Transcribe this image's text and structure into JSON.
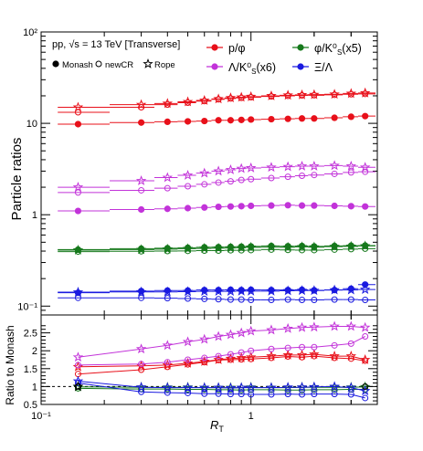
{
  "chart_data": {
    "type": "scatter",
    "annotation": "pp, √s = 13 TeV [Transverse]",
    "xlabel": "R_T",
    "xscale": "log",
    "xlim": [
      0.1,
      4.0
    ],
    "x_tick_labels": [
      "10⁻¹",
      "1"
    ],
    "x": [
      0.15,
      0.3,
      0.4,
      0.5,
      0.6,
      0.7,
      0.8,
      0.9,
      1.0,
      1.25,
      1.5,
      1.75,
      2.0,
      2.5,
      3.0,
      3.5
    ],
    "markers_legend": [
      {
        "label": "Monash",
        "marker": "circle-filled"
      },
      {
        "label": "newCR",
        "marker": "circle-open"
      },
      {
        "label": "Rope",
        "marker": "star-open"
      }
    ],
    "species_legend": [
      {
        "label": "p/φ",
        "color": "#e8101a"
      },
      {
        "label": "φ/K⁰_S(x5)",
        "color": "#16791c"
      },
      {
        "label": "Λ/K⁰_S(x6)",
        "color": "#c233d9"
      },
      {
        "label": "Ξ/Λ",
        "color": "#1a1ae0"
      }
    ],
    "top_panel": {
      "ylabel": "Particle  ratios",
      "yscale": "log",
      "ylim": [
        0.08,
        100
      ],
      "y_tick_labels": [
        "10⁻¹",
        "1",
        "10",
        "10²"
      ],
      "series": [
        {
          "species": "p/φ",
          "model": "Monash",
          "color": "#e8101a",
          "marker": "circle-filled",
          "values": [
            9.8,
            10.2,
            10.4,
            10.5,
            10.6,
            10.8,
            10.8,
            10.9,
            11.0,
            11.1,
            11.2,
            11.3,
            11.3,
            11.5,
            11.8,
            12.0
          ]
        },
        {
          "species": "p/φ",
          "model": "newCR",
          "color": "#e8101a",
          "marker": "circle-open",
          "values": [
            13.2,
            15.0,
            16.0,
            16.8,
            17.5,
            18.3,
            18.7,
            19.0,
            19.3,
            19.7,
            20.0,
            20.2,
            20.3,
            20.5,
            20.8,
            21.0
          ]
        },
        {
          "species": "p/φ",
          "model": "Rope",
          "color": "#e8101a",
          "marker": "star-open",
          "values": [
            15.0,
            16.0,
            16.5,
            17.2,
            17.8,
            18.5,
            19.0,
            19.3,
            19.6,
            20.0,
            20.3,
            20.5,
            20.6,
            20.8,
            21.2,
            21.5
          ]
        },
        {
          "species": "Λ/K⁰_S(x6)",
          "model": "Monash",
          "color": "#c233d9",
          "marker": "circle-filled",
          "values": [
            1.1,
            1.14,
            1.16,
            1.18,
            1.2,
            1.22,
            1.23,
            1.24,
            1.25,
            1.26,
            1.27,
            1.26,
            1.26,
            1.25,
            1.24,
            1.23
          ]
        },
        {
          "species": "Λ/K⁰_S(x6)",
          "model": "newCR",
          "color": "#c233d9",
          "marker": "circle-open",
          "values": [
            1.75,
            1.85,
            1.95,
            2.05,
            2.15,
            2.25,
            2.32,
            2.4,
            2.45,
            2.52,
            2.6,
            2.67,
            2.72,
            2.8,
            2.9,
            2.95
          ]
        },
        {
          "species": "Λ/K⁰_S(x6)",
          "model": "Rope",
          "color": "#c233d9",
          "marker": "star-open",
          "values": [
            2.0,
            2.35,
            2.55,
            2.7,
            2.85,
            3.0,
            3.1,
            3.2,
            3.25,
            3.3,
            3.35,
            3.4,
            3.4,
            3.45,
            3.4,
            3.3
          ]
        },
        {
          "species": "φ/K⁰_S(x5)",
          "model": "Monash",
          "color": "#16791c",
          "marker": "circle-filled",
          "values": [
            0.415,
            0.425,
            0.43,
            0.435,
            0.44,
            0.442,
            0.445,
            0.447,
            0.45,
            0.455,
            0.452,
            0.455,
            0.45,
            0.455,
            0.458,
            0.46
          ]
        },
        {
          "species": "φ/K⁰_S(x5)",
          "model": "newCR",
          "color": "#16791c",
          "marker": "circle-open",
          "values": [
            0.395,
            0.398,
            0.4,
            0.402,
            0.405,
            0.405,
            0.408,
            0.408,
            0.41,
            0.415,
            0.412,
            0.41,
            0.41,
            0.415,
            0.42,
            0.425
          ]
        },
        {
          "species": "φ/K⁰_S(x5)",
          "model": "Rope",
          "color": "#16791c",
          "marker": "star-open",
          "values": [
            0.41,
            0.415,
            0.42,
            0.425,
            0.428,
            0.43,
            0.432,
            0.435,
            0.44,
            0.442,
            0.44,
            0.445,
            0.442,
            0.448,
            0.45,
            0.455
          ]
        },
        {
          "species": "Ξ/Λ",
          "model": "Monash",
          "color": "#1a1ae0",
          "marker": "circle-filled",
          "values": [
            0.14,
            0.146,
            0.148,
            0.148,
            0.15,
            0.15,
            0.151,
            0.15,
            0.151,
            0.15,
            0.15,
            0.151,
            0.149,
            0.15,
            0.155,
            0.172
          ]
        },
        {
          "species": "Ξ/Λ",
          "model": "newCR",
          "color": "#1a1ae0",
          "marker": "circle-open",
          "values": [
            0.123,
            0.123,
            0.122,
            0.121,
            0.12,
            0.119,
            0.118,
            0.118,
            0.117,
            0.117,
            0.118,
            0.117,
            0.117,
            0.118,
            0.118,
            0.117
          ]
        },
        {
          "species": "Ξ/Λ",
          "model": "Rope",
          "color": "#1a1ae0",
          "marker": "star-open",
          "values": [
            0.142,
            0.143,
            0.143,
            0.144,
            0.145,
            0.145,
            0.145,
            0.146,
            0.146,
            0.146,
            0.147,
            0.148,
            0.148,
            0.15,
            0.15,
            0.152
          ]
        }
      ]
    },
    "bottom_panel": {
      "ylabel": "Ratio to Monash",
      "ylim": [
        0.5,
        3.0
      ],
      "y_tick_labels": [
        "0.5",
        "1",
        "1.5",
        "2",
        "2.5"
      ],
      "reference_line": 1,
      "series": [
        {
          "species": "p/φ",
          "model": "newCR",
          "color": "#e8101a",
          "marker": "circle-open",
          "values": [
            1.35,
            1.47,
            1.55,
            1.62,
            1.68,
            1.74,
            1.75,
            1.76,
            1.77,
            1.8,
            1.84,
            1.82,
            1.85,
            1.8,
            1.78,
            1.72
          ]
        },
        {
          "species": "p/φ",
          "model": "Rope",
          "color": "#e8101a",
          "marker": "star-open",
          "values": [
            1.55,
            1.58,
            1.6,
            1.65,
            1.7,
            1.75,
            1.78,
            1.8,
            1.82,
            1.85,
            1.88,
            1.88,
            1.9,
            1.85,
            1.85,
            1.75
          ]
        },
        {
          "species": "Λ/K⁰_S(x6)",
          "model": "newCR",
          "color": "#c233d9",
          "marker": "circle-open",
          "values": [
            1.6,
            1.63,
            1.68,
            1.75,
            1.8,
            1.85,
            1.9,
            1.95,
            2.0,
            2.05,
            2.08,
            2.1,
            2.1,
            2.15,
            2.2,
            2.4
          ]
        },
        {
          "species": "Λ/K⁰_S(x6)",
          "model": "Rope",
          "color": "#c233d9",
          "marker": "star-open",
          "values": [
            1.82,
            2.05,
            2.15,
            2.25,
            2.32,
            2.4,
            2.45,
            2.5,
            2.55,
            2.58,
            2.62,
            2.65,
            2.66,
            2.68,
            2.68,
            2.65
          ]
        },
        {
          "species": "φ/K⁰_S(x5)",
          "model": "newCR",
          "color": "#16791c",
          "marker": "circle-open",
          "values": [
            0.95,
            0.93,
            0.93,
            0.92,
            0.92,
            0.91,
            0.91,
            0.9,
            0.91,
            0.91,
            0.9,
            0.9,
            0.91,
            0.91,
            0.92,
            0.92
          ]
        },
        {
          "species": "φ/K⁰_S(x5)",
          "model": "Rope",
          "color": "#16791c",
          "marker": "star-open",
          "values": [
            0.99,
            0.98,
            0.98,
            0.98,
            0.97,
            0.97,
            0.97,
            0.97,
            0.98,
            0.97,
            0.97,
            0.98,
            0.98,
            0.98,
            0.98,
            0.99
          ]
        },
        {
          "species": "Ξ/Λ",
          "model": "newCR",
          "color": "#1a1ae0",
          "marker": "circle-open",
          "values": [
            1.1,
            0.85,
            0.83,
            0.82,
            0.8,
            0.8,
            0.79,
            0.79,
            0.78,
            0.78,
            0.79,
            0.78,
            0.79,
            0.79,
            0.78,
            0.68
          ]
        },
        {
          "species": "Ξ/Λ",
          "model": "Rope",
          "color": "#1a1ae0",
          "marker": "star-open",
          "values": [
            1.15,
            0.98,
            0.97,
            0.97,
            0.97,
            0.97,
            0.96,
            0.97,
            0.97,
            0.97,
            0.98,
            0.98,
            0.99,
            1.0,
            0.97,
            0.88
          ]
        }
      ]
    }
  }
}
